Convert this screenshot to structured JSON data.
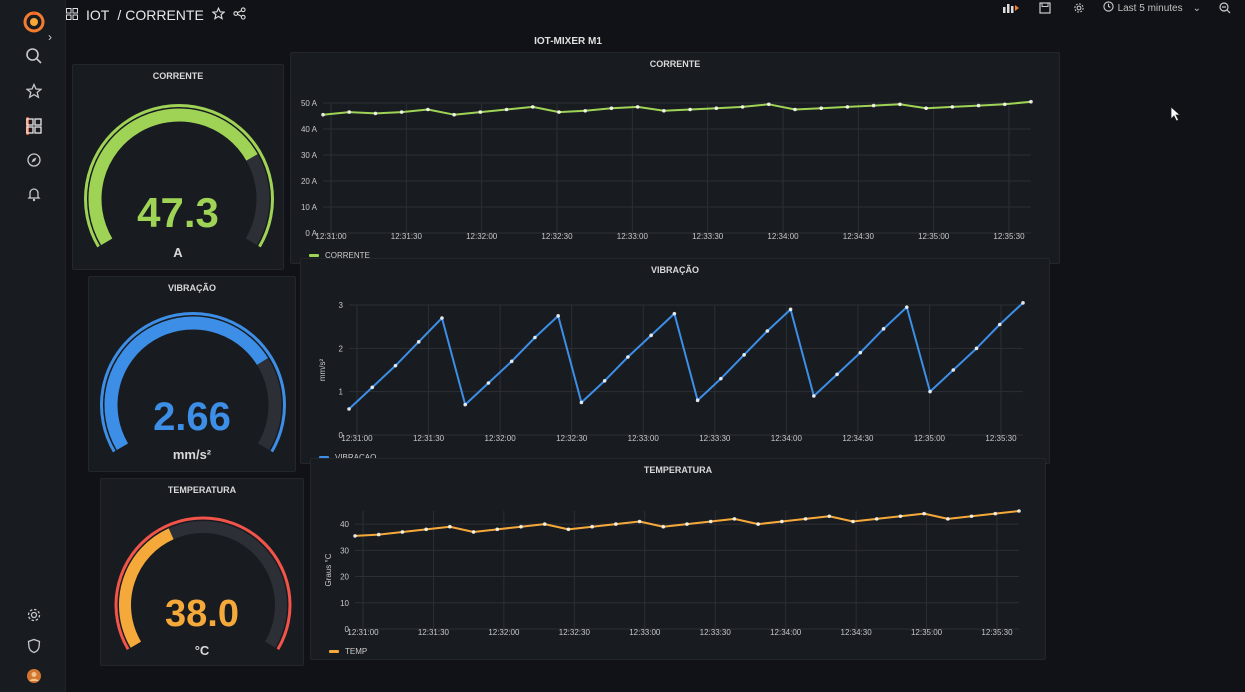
{
  "breadcrumb": {
    "folder": "IOT",
    "separator": "/",
    "dashboard": "CORRENTE"
  },
  "time_picker": {
    "label": "Last 5 minutes"
  },
  "row": {
    "title": "IOT-MIXER M1"
  },
  "colors": {
    "green": "#9fd356",
    "blue": "#3d8ee6",
    "orange": "#f6a93b",
    "red": "#f2544a",
    "panel": "#181b1f",
    "grid": "#2c2f35"
  },
  "icons": {
    "nav": [
      "grafana-logo-icon",
      "search-icon",
      "star-icon",
      "dashboards-icon",
      "explore-icon",
      "alert-bell-icon",
      "gear-icon",
      "shield-icon",
      "avatar-icon"
    ],
    "topbar": [
      "dashboard-grid-icon",
      "star-icon",
      "share-icon",
      "add-panel-icon",
      "save-icon",
      "settings-icon",
      "clock-icon",
      "chevron-down-icon",
      "zoom-out-icon"
    ]
  },
  "gauges": [
    {
      "title": "CORRENTE",
      "value": "47.3",
      "unit": "A",
      "fraction": 0.75,
      "color": "#9fd356"
    },
    {
      "title": "VIBRAÇÃO",
      "value": "2.66",
      "unit": "mm/s²",
      "fraction": 0.74,
      "color": "#3d8ee6"
    },
    {
      "title": "TEMPERATURA",
      "value": "38.0",
      "unit": "°C",
      "fraction": 0.4,
      "color": "#f6a93b"
    }
  ],
  "chart_data": [
    {
      "type": "line",
      "title": "CORRENTE",
      "ylabel": "",
      "ylim": [
        0,
        50
      ],
      "yticks": [
        "0 A",
        "10 A",
        "20 A",
        "30 A",
        "40 A",
        "50 A"
      ],
      "x_ticks": [
        "12:31:00",
        "12:31:30",
        "12:32:00",
        "12:32:30",
        "12:33:00",
        "12:33:30",
        "12:34:00",
        "12:34:30",
        "12:35:00",
        "12:35:30"
      ],
      "series": [
        {
          "name": "CORRENTE",
          "color": "#9fd356",
          "values": [
            45.5,
            46.5,
            46,
            46.5,
            47.5,
            45.5,
            46.5,
            47.5,
            48.5,
            46.5,
            47,
            48,
            48.5,
            47,
            47.5,
            48,
            48.5,
            49.5,
            47.5,
            48,
            48.5,
            49,
            49.5,
            48,
            48.5,
            49,
            49.5,
            50.5
          ]
        }
      ]
    },
    {
      "type": "line",
      "title": "VIBRAÇÃO",
      "ylabel": "mm/s²",
      "ylim": [
        0,
        3
      ],
      "yticks": [
        "0",
        "1",
        "2",
        "3"
      ],
      "x_ticks": [
        "12:31:00",
        "12:31:30",
        "12:32:00",
        "12:32:30",
        "12:33:00",
        "12:33:30",
        "12:34:00",
        "12:34:30",
        "12:35:00",
        "12:35:30"
      ],
      "series": [
        {
          "name": "VIBRACAO",
          "color": "#3d8ee6",
          "values": [
            0.6,
            1.1,
            1.6,
            2.15,
            2.7,
            0.7,
            1.2,
            1.7,
            2.25,
            2.75,
            0.75,
            1.25,
            1.8,
            2.3,
            2.8,
            0.8,
            1.3,
            1.85,
            2.4,
            2.9,
            0.9,
            1.4,
            1.9,
            2.45,
            2.95,
            1.0,
            1.5,
            2.0,
            2.55,
            3.05
          ]
        }
      ]
    },
    {
      "type": "line",
      "title": "TEMPERATURA",
      "ylabel": "Graus °C",
      "ylim": [
        0,
        45
      ],
      "yticks": [
        "0",
        "10",
        "20",
        "30",
        "40"
      ],
      "x_ticks": [
        "12:31:00",
        "12:31:30",
        "12:32:00",
        "12:32:30",
        "12:33:00",
        "12:33:30",
        "12:34:00",
        "12:34:30",
        "12:35:00",
        "12:35:30"
      ],
      "series": [
        {
          "name": "TEMP",
          "color": "#f6a93b",
          "values": [
            35.5,
            36,
            37,
            38,
            39,
            37,
            38,
            39,
            40,
            38,
            39,
            40,
            41,
            39,
            40,
            41,
            42,
            40,
            41,
            42,
            43,
            41,
            42,
            43,
            44,
            42,
            43,
            44,
            45
          ]
        }
      ]
    }
  ]
}
